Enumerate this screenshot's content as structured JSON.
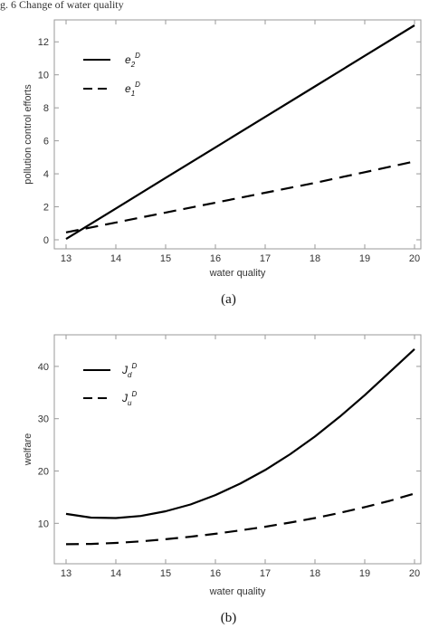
{
  "top_caption_fragment": "g. 6 Change of water quality",
  "chart_data": [
    {
      "type": "line",
      "caption": "(a)",
      "xlabel": "water quality",
      "ylabel": "pollution control efforts",
      "xlim": [
        13,
        20
      ],
      "ylim": [
        0,
        13
      ],
      "xticks": [
        13,
        14,
        15,
        16,
        17,
        18,
        19,
        20
      ],
      "yticks": [
        0,
        2,
        4,
        6,
        8,
        10,
        12
      ],
      "grid": false,
      "legend_position": "top-left",
      "series": [
        {
          "name": "e2",
          "sup": "D",
          "sub_style": "digit",
          "dash": "solid",
          "x": [
            13,
            14,
            15,
            16,
            17,
            18,
            19,
            20
          ],
          "y": [
            0.05,
            1.9,
            3.75,
            5.6,
            7.45,
            9.3,
            11.15,
            13.0
          ]
        },
        {
          "name": "e1",
          "sup": "D",
          "sub_style": "digit",
          "dash": "dashed",
          "x": [
            13,
            14,
            15,
            16,
            17,
            18,
            19,
            20
          ],
          "y": [
            0.45,
            1.05,
            1.65,
            2.25,
            2.85,
            3.45,
            4.1,
            4.75
          ]
        }
      ]
    },
    {
      "type": "line",
      "caption": "(b)",
      "xlabel": "water quality",
      "ylabel": "welfare",
      "xlim": [
        13,
        20
      ],
      "ylim": [
        4,
        45
      ],
      "xticks": [
        13,
        14,
        15,
        16,
        17,
        18,
        19,
        20
      ],
      "yticks": [
        10,
        20,
        30,
        40
      ],
      "grid": false,
      "legend_position": "top-left",
      "series": [
        {
          "name": "Jd",
          "sup": "D",
          "dash": "solid",
          "x": [
            13,
            13.5,
            14,
            14.5,
            15,
            15.5,
            16,
            16.5,
            17,
            17.5,
            18,
            18.5,
            19,
            19.5,
            20
          ],
          "y": [
            11.8,
            11.1,
            11.0,
            11.4,
            12.3,
            13.6,
            15.4,
            17.6,
            20.2,
            23.2,
            26.6,
            30.4,
            34.5,
            38.9,
            43.3
          ]
        },
        {
          "name": "Ju",
          "sup": "D",
          "dash": "dashed",
          "x": [
            13,
            13.5,
            14,
            14.5,
            15,
            15.5,
            16,
            16.5,
            17,
            17.5,
            18,
            18.5,
            19,
            19.5,
            20
          ],
          "y": [
            6.0,
            6.05,
            6.25,
            6.55,
            6.95,
            7.45,
            8.0,
            8.65,
            9.35,
            10.15,
            11.0,
            12.0,
            13.1,
            14.3,
            15.7
          ]
        }
      ]
    }
  ]
}
